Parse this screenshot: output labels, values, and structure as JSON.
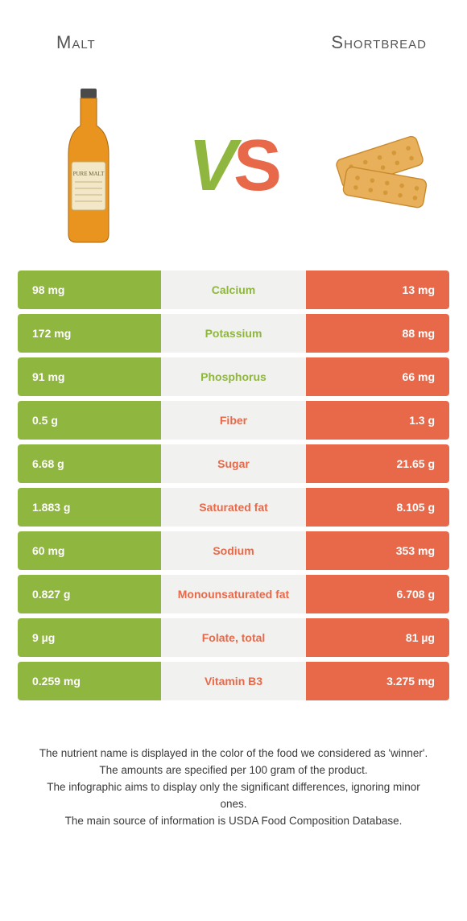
{
  "colors": {
    "left": "#8fb63f",
    "right": "#e8694a",
    "mid_bg": "#f1f1ef"
  },
  "header": {
    "left_title": "Malt",
    "right_title": "Shortbread",
    "vs_v": "V",
    "vs_s": "S"
  },
  "rows": [
    {
      "left": "98 mg",
      "mid": "Calcium",
      "right": "13 mg",
      "winner": "left"
    },
    {
      "left": "172 mg",
      "mid": "Potassium",
      "right": "88 mg",
      "winner": "left"
    },
    {
      "left": "91 mg",
      "mid": "Phosphorus",
      "right": "66 mg",
      "winner": "left"
    },
    {
      "left": "0.5 g",
      "mid": "Fiber",
      "right": "1.3 g",
      "winner": "right"
    },
    {
      "left": "6.68 g",
      "mid": "Sugar",
      "right": "21.65 g",
      "winner": "right"
    },
    {
      "left": "1.883 g",
      "mid": "Saturated fat",
      "right": "8.105 g",
      "winner": "right"
    },
    {
      "left": "60 mg",
      "mid": "Sodium",
      "right": "353 mg",
      "winner": "right"
    },
    {
      "left": "0.827 g",
      "mid": "Monounsaturated fat",
      "right": "6.708 g",
      "winner": "right"
    },
    {
      "left": "9 µg",
      "mid": "Folate, total",
      "right": "81 µg",
      "winner": "right"
    },
    {
      "left": "0.259 mg",
      "mid": "Vitamin B3",
      "right": "3.275 mg",
      "winner": "right"
    }
  ],
  "footer": {
    "line1": "The nutrient name is displayed in the color of the food we considered as 'winner'.",
    "line2": "The amounts are specified per 100 gram of the product.",
    "line3": "The infographic aims to display only the significant differences, ignoring minor ones.",
    "line4": "The main source of information is USDA Food Composition Database."
  }
}
